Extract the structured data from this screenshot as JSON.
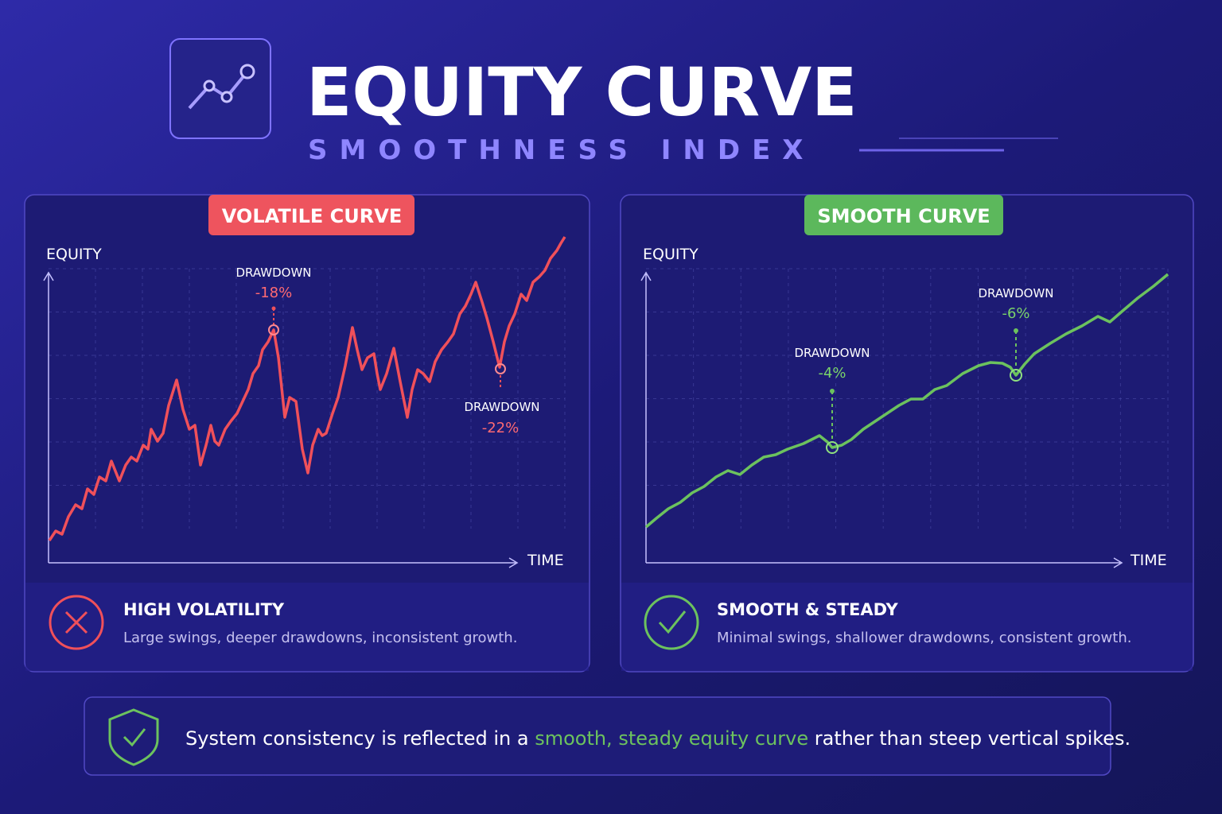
{
  "header": {
    "title": "EQUITY CURVE",
    "subtitle": "SMOOTHNESS INDEX"
  },
  "panels": [
    {
      "badge": "VOLATILE CURVE",
      "y_axis": "EQUITY",
      "x_axis": "TIME",
      "annotations": [
        {
          "label": "DRAWDOWN",
          "value": "-18%"
        },
        {
          "label": "DRAWDOWN",
          "value": "-22%"
        }
      ],
      "heading": "HIGH VOLATILITY",
      "description": "Large swings, deeper drawdowns, inconsistent growth."
    },
    {
      "badge": "SMOOTH CURVE",
      "y_axis": "EQUITY",
      "x_axis": "TIME",
      "annotations": [
        {
          "label": "DRAWDOWN",
          "value": "-4%"
        },
        {
          "label": "DRAWDOWN",
          "value": "-6%"
        }
      ],
      "heading": "SMOOTH & STEADY",
      "description": "Minimal swings, shallower drawdowns, consistent growth."
    }
  ],
  "footer": {
    "text_before": "System consistency is reflected in a",
    "highlight": "smooth, steady equity curve",
    "text_after": "rather than steep vertical spikes."
  }
}
